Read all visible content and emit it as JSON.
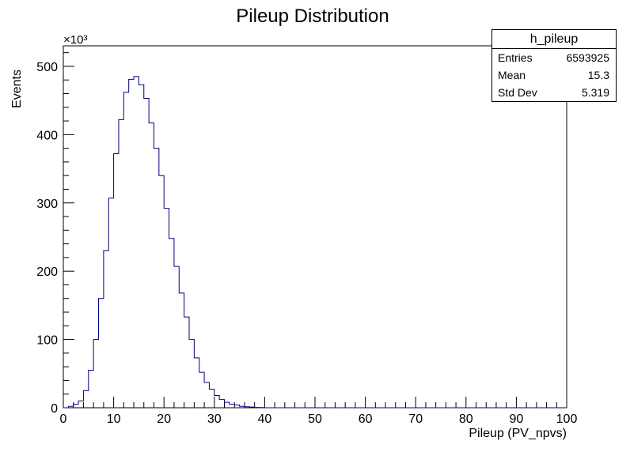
{
  "chart_data": {
    "type": "histogram",
    "title": "Pileup Distribution",
    "xlabel": "Pileup (PV_npvs)",
    "ylabel": "Events",
    "y_multiplier": "×10³",
    "xlim": [
      0,
      100
    ],
    "ylim": [
      0,
      530
    ],
    "bin_width": 1,
    "x_ticks": [
      0,
      10,
      20,
      30,
      40,
      50,
      60,
      70,
      80,
      90,
      100
    ],
    "y_ticks": [
      0,
      100,
      200,
      300,
      400,
      500
    ],
    "line_color": "#000080",
    "bins": [
      0,
      1,
      2,
      3,
      4,
      5,
      6,
      7,
      8,
      9,
      10,
      11,
      12,
      13,
      14,
      15,
      16,
      17,
      18,
      19,
      20,
      21,
      22,
      23,
      24,
      25,
      26,
      27,
      28,
      29,
      30,
      31,
      32,
      33,
      34,
      35,
      36,
      37,
      38,
      39,
      40,
      41,
      42,
      43,
      44,
      45,
      46,
      47,
      48,
      49,
      50,
      51,
      52,
      53,
      54,
      55,
      56,
      57,
      58,
      59,
      60,
      61,
      62,
      63,
      64,
      65,
      66,
      67,
      68,
      69,
      70,
      71,
      72,
      73,
      74,
      75,
      76,
      77,
      78,
      79,
      80,
      81,
      82,
      83,
      84,
      85,
      86,
      87,
      88,
      89,
      90,
      91,
      92,
      93,
      94,
      95,
      96,
      97,
      98,
      99
    ],
    "values": [
      0,
      2,
      5,
      10,
      25,
      55,
      100,
      160,
      230,
      307,
      372,
      422,
      462,
      481,
      485,
      473,
      453,
      417,
      380,
      340,
      292,
      248,
      207,
      168,
      133,
      100,
      73,
      52,
      37,
      27,
      18,
      12,
      8,
      5,
      4,
      2,
      1.5,
      1,
      0.5,
      0.3,
      0,
      0,
      0,
      0,
      0,
      0,
      0,
      0,
      0,
      0,
      0,
      0,
      0,
      0,
      0,
      0,
      0,
      0,
      0,
      0,
      0,
      0,
      0,
      0,
      0,
      0,
      0,
      0,
      0,
      0,
      0,
      0,
      0,
      0,
      0,
      0,
      0,
      0,
      0,
      0,
      0,
      0,
      0,
      0,
      0,
      0,
      0,
      0,
      0,
      0,
      0,
      0,
      0,
      0,
      0,
      0,
      0,
      0,
      0,
      0
    ]
  },
  "stats": {
    "name": "h_pileup",
    "entries_label": "Entries",
    "entries_value": "6593925",
    "mean_label": "Mean",
    "mean_value": "15.3",
    "std_label": "Std Dev",
    "std_value": "5.319"
  }
}
